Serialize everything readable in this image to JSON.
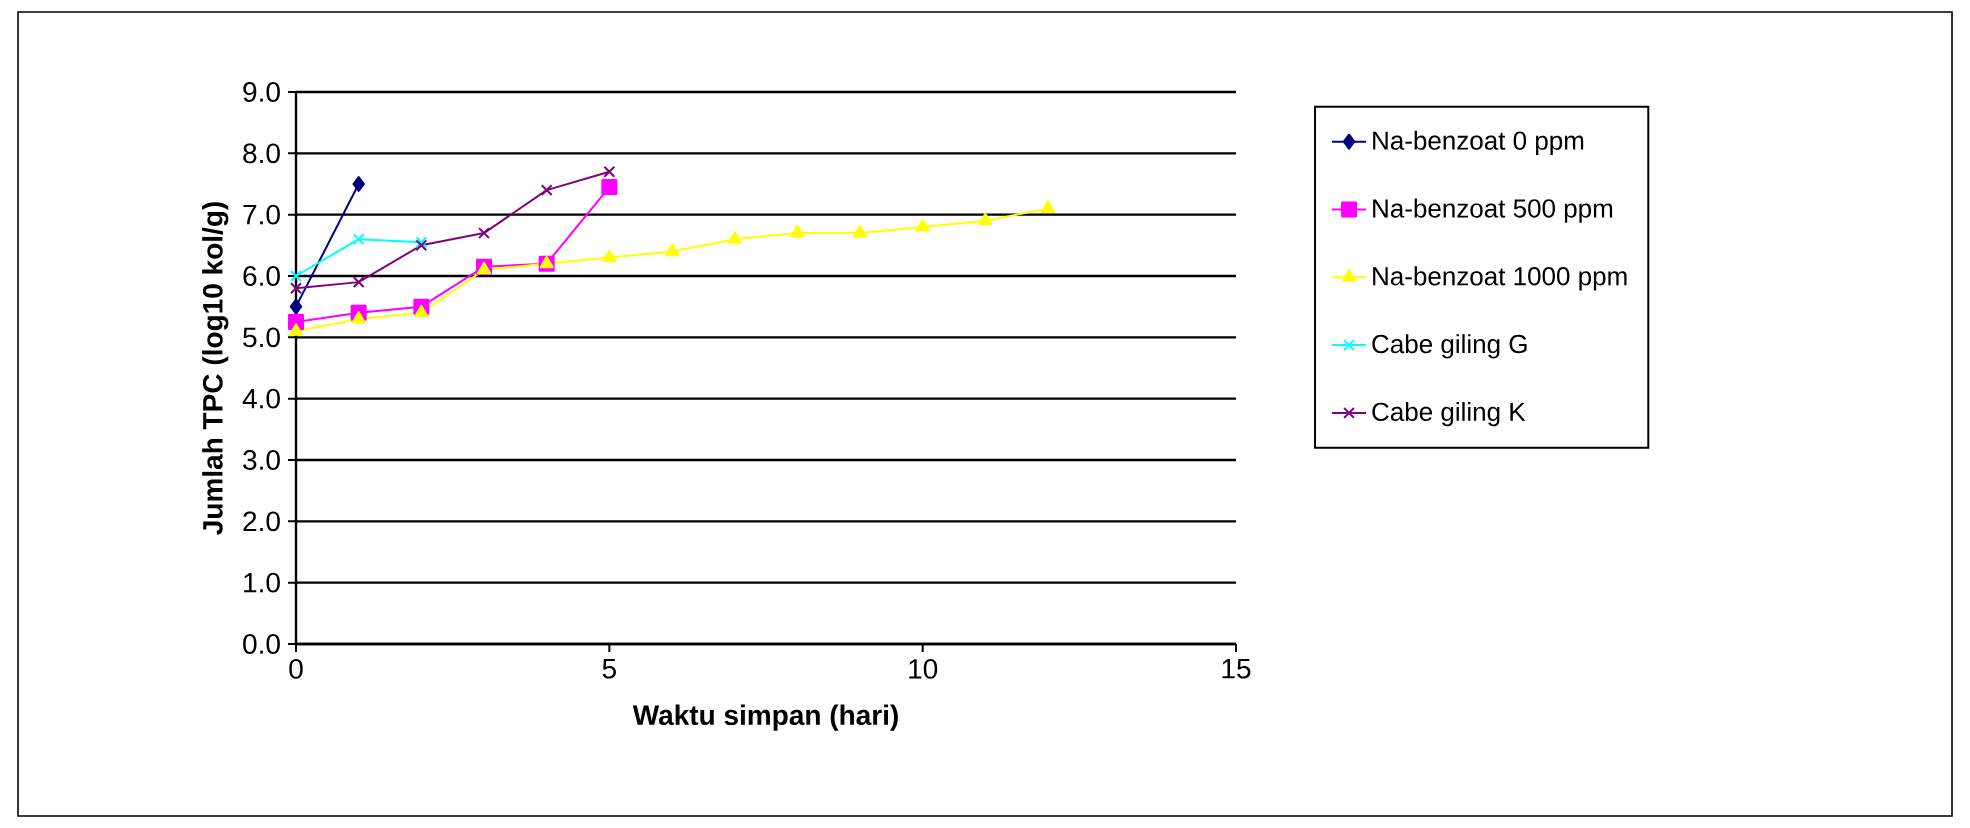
{
  "chart_data": {
    "type": "line",
    "xlabel": "Waktu simpan (hari)",
    "ylabel": "Jumlah TPC (log10 kol/g)",
    "xlim": [
      0,
      15
    ],
    "xticks": [
      0,
      5,
      10,
      15
    ],
    "ylim": [
      0,
      9
    ],
    "yticks": [
      {
        "value": 0,
        "label": "0.0"
      },
      {
        "value": 1,
        "label": "1.0"
      },
      {
        "value": 2,
        "label": "2.0"
      },
      {
        "value": 3,
        "label": "3.0"
      },
      {
        "value": 4,
        "label": "4.0"
      },
      {
        "value": 5,
        "label": "5.0"
      },
      {
        "value": 6,
        "label": "6.0"
      },
      {
        "value": 7,
        "label": "7.0"
      },
      {
        "value": 8,
        "label": "8.0"
      },
      {
        "value": 9,
        "label": "9.0"
      }
    ],
    "grid": "y",
    "legend": "right",
    "line_style": "solid",
    "series": [
      {
        "name": "Na-benzoat 0 ppm",
        "color": "#000080",
        "marker": "diamond",
        "x": [
          0,
          1
        ],
        "values": [
          5.5,
          7.5
        ]
      },
      {
        "name": "Na-benzoat 500 ppm",
        "color": "#ff00ff",
        "marker": "square",
        "x": [
          0,
          1,
          2,
          3,
          4,
          5
        ],
        "values": [
          5.25,
          5.4,
          5.5,
          6.15,
          6.2,
          7.45
        ]
      },
      {
        "name": "Na-benzoat 1000 ppm",
        "color": "#ffff00",
        "marker": "triangle",
        "x": [
          0,
          1,
          2,
          3,
          4,
          5,
          6,
          7,
          8,
          9,
          10,
          11,
          12
        ],
        "values": [
          5.1,
          5.3,
          5.4,
          6.1,
          6.2,
          6.3,
          6.4,
          6.6,
          6.7,
          6.7,
          6.8,
          6.9,
          7.1
        ]
      },
      {
        "name": "Cabe giling G",
        "color": "#00ffff",
        "marker": "cross",
        "x": [
          0,
          1,
          2
        ],
        "values": [
          6.0,
          6.6,
          6.55
        ]
      },
      {
        "name": "Cabe giling K",
        "color": "#800080",
        "marker": "cross",
        "x": [
          0,
          1,
          2,
          3,
          4,
          5
        ],
        "values": [
          5.8,
          5.9,
          6.5,
          6.7,
          7.4,
          7.7
        ]
      }
    ]
  }
}
